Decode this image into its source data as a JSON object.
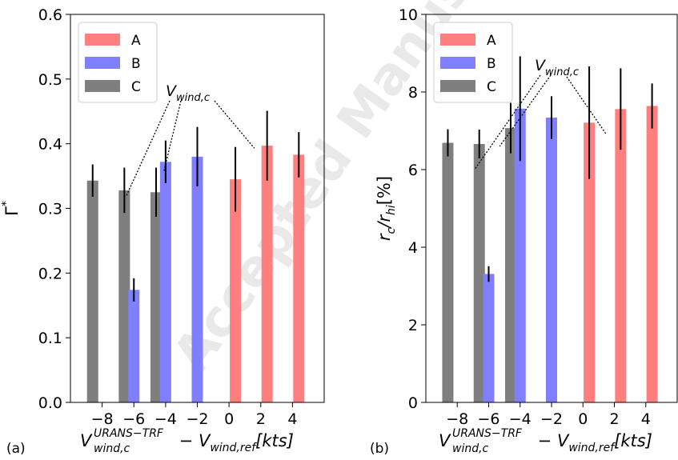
{
  "watermark": "Accepted Manuscript Not",
  "colors": {
    "A": "#ff7f7f",
    "B": "#7f7fff",
    "C": "#7f7f7f"
  },
  "chart_data": [
    {
      "type": "bar",
      "panel_label": "(a)",
      "ylabel_base": "Γ",
      "ylabel_sup": "*",
      "xlabel": {
        "main": "V",
        "sup": "URANS−TRF",
        "sub": "wind,c",
        "rest": " − V",
        "sub2": "wind,ref",
        "unit": "[kts]"
      },
      "annotation": {
        "main": "V",
        "sub": "wind,c"
      },
      "xlim": [
        -10,
        6
      ],
      "ylim": [
        0,
        0.6
      ],
      "yticks": [
        0.0,
        0.1,
        0.2,
        0.3,
        0.4,
        0.5,
        0.6
      ],
      "ytick_labels": [
        "0.0",
        "0.1",
        "0.2",
        "0.3",
        "0.4",
        "0.5",
        "0.6"
      ],
      "xticks": [
        -8,
        -6,
        -4,
        -2,
        0,
        2,
        4
      ],
      "xtick_labels": [
        "−8",
        "−6",
        "−4",
        "−2",
        "0",
        "2",
        "4"
      ],
      "legend": {
        "placement": "top-left",
        "entries": [
          "A",
          "B",
          "C"
        ]
      },
      "series": [
        {
          "name": "C",
          "x": [
            -8.6,
            -6.6,
            -4.6
          ],
          "values": [
            0.343,
            0.328,
            0.325
          ],
          "err": [
            0.025,
            0.035,
            0.038
          ]
        },
        {
          "name": "B",
          "x": [
            -6.0,
            -4.0,
            -2.0
          ],
          "values": [
            0.174,
            0.372,
            0.38
          ],
          "err": [
            0.018,
            0.033,
            0.046
          ]
        },
        {
          "name": "A",
          "x": [
            0.4,
            2.4,
            4.4
          ],
          "values": [
            0.345,
            0.397,
            0.383
          ],
          "err": [
            0.05,
            0.054,
            0.035
          ]
        }
      ],
      "annotation_targets": [
        [
          -6.5,
          0.318
        ],
        [
          -4.1,
          0.358
        ],
        [
          1.6,
          0.393
        ]
      ]
    },
    {
      "type": "bar",
      "panel_label": "(b)",
      "ylabel": "r_c/r_hi[%]",
      "xlabel": {
        "main": "V",
        "sup": "URANS−TRF",
        "sub": "wind,c",
        "rest": " − V",
        "sub2": "wind,ref",
        "unit": "[kts]"
      },
      "annotation": {
        "main": "V",
        "sub": "wind,c"
      },
      "xlim": [
        -10,
        6
      ],
      "ylim": [
        0,
        10
      ],
      "yticks": [
        0,
        2,
        4,
        6,
        8,
        10
      ],
      "ytick_labels": [
        "0",
        "2",
        "4",
        "6",
        "8",
        "10"
      ],
      "xticks": [
        -8,
        -6,
        -4,
        -2,
        0,
        2,
        4
      ],
      "xtick_labels": [
        "−8",
        "−6",
        "−4",
        "−2",
        "0",
        "2",
        "4"
      ],
      "legend": {
        "placement": "top-left",
        "entries": [
          "A",
          "B",
          "C"
        ]
      },
      "series": [
        {
          "name": "C",
          "x": [
            -8.6,
            -6.6,
            -4.6
          ],
          "values": [
            6.69,
            6.66,
            7.07
          ],
          "err": [
            0.35,
            0.37,
            0.65
          ]
        },
        {
          "name": "B",
          "x": [
            -6.0,
            -4.0,
            -2.0
          ],
          "values": [
            3.31,
            7.57,
            7.34
          ],
          "err": [
            0.2,
            1.35,
            0.55
          ]
        },
        {
          "name": "A",
          "x": [
            0.4,
            2.4,
            4.4
          ],
          "values": [
            7.21,
            7.56,
            7.64
          ],
          "err": [
            1.45,
            1.05,
            0.58
          ]
        }
      ],
      "annotation_targets": [
        [
          -6.9,
          6.0
        ],
        [
          -5.3,
          6.6
        ],
        [
          1.5,
          6.9
        ]
      ]
    }
  ]
}
